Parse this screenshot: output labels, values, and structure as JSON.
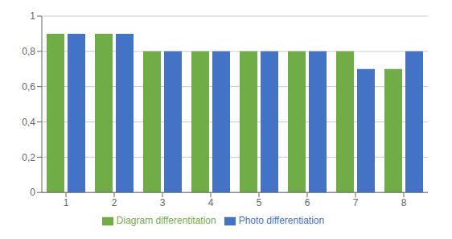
{
  "chart_data": {
    "type": "bar",
    "categories": [
      "1",
      "2",
      "3",
      "4",
      "5",
      "6",
      "7",
      "8"
    ],
    "series": [
      {
        "name": "Diagram differentitation",
        "color": "#70ad47",
        "values": [
          0.9,
          0.9,
          0.8,
          0.8,
          0.8,
          0.8,
          0.8,
          0.7
        ]
      },
      {
        "name": "Photo differentiation",
        "color": "#4472c4",
        "values": [
          0.9,
          0.9,
          0.8,
          0.8,
          0.8,
          0.8,
          0.7,
          0.8
        ]
      }
    ],
    "ylim": [
      0,
      1
    ],
    "yticks": [
      0,
      {
        "value": 0.2,
        "label": "0,2"
      },
      {
        "value": 0.4,
        "label": "0,4"
      },
      {
        "value": 0.6,
        "label": "0,6"
      },
      {
        "value": 0.8,
        "label": "0,8"
      },
      1
    ],
    "grid": true,
    "legend": "bottom"
  }
}
